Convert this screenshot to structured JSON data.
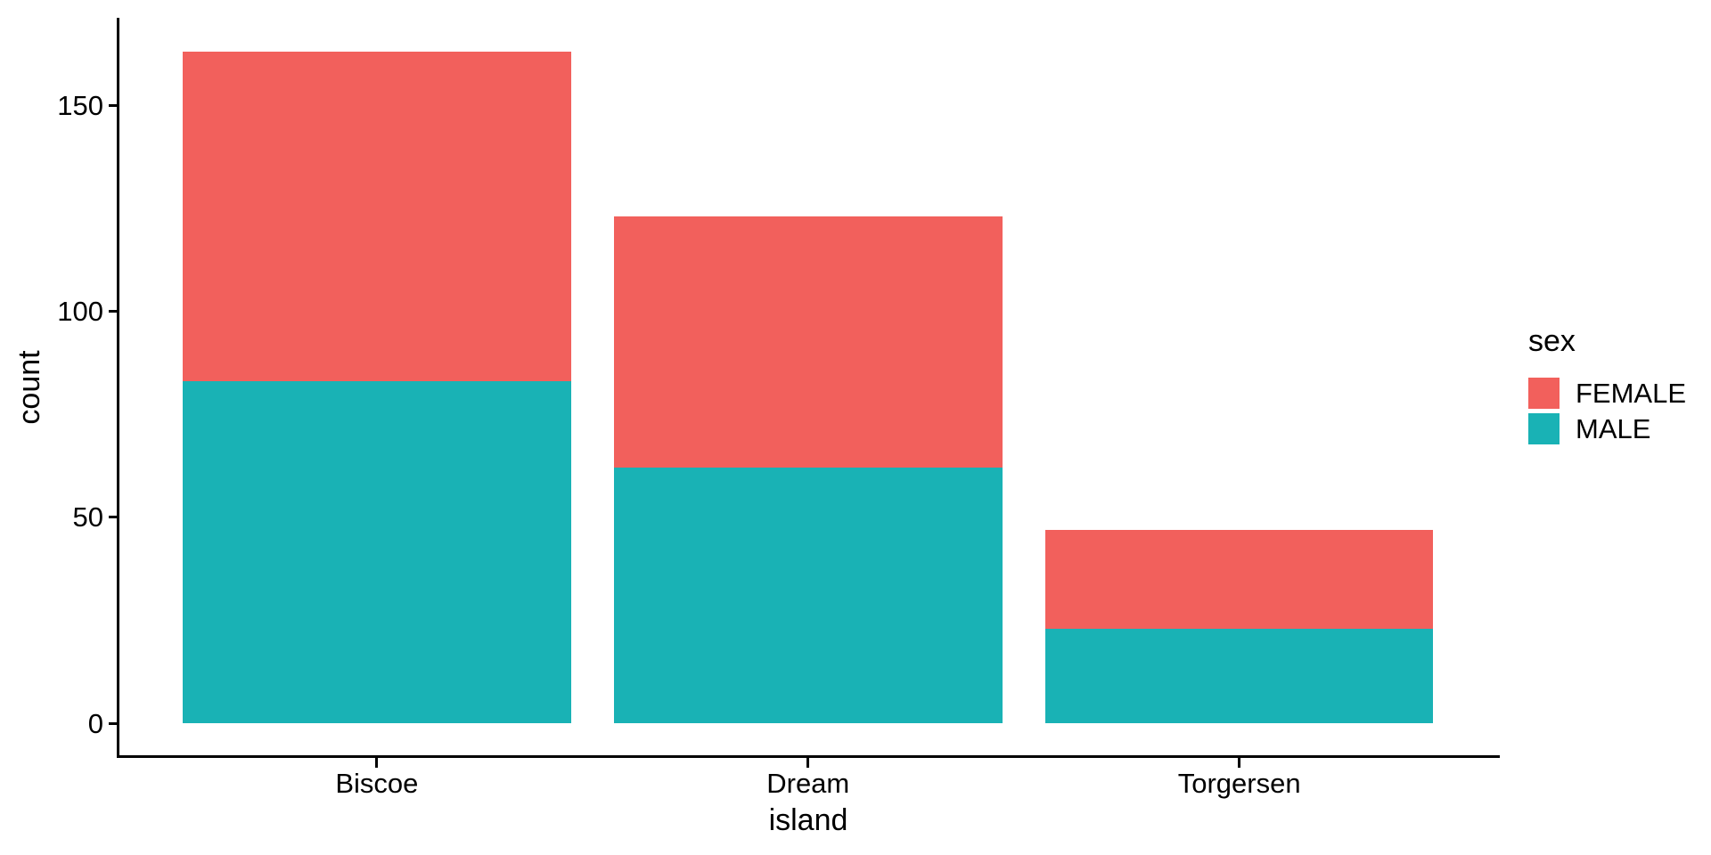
{
  "figure": {
    "background_color": "#FFFFFF",
    "text_color": "#000000",
    "axis_color": "#000000"
  },
  "chart_data": {
    "type": "bar",
    "stacked": true,
    "orientation": "vertical",
    "title": "",
    "xlabel": "island",
    "ylabel": "count",
    "categories": [
      "Biscoe",
      "Dream",
      "Torgersen"
    ],
    "series": [
      {
        "name": "FEMALE",
        "color": "#F2605C",
        "values": [
          80,
          61,
          24
        ]
      },
      {
        "name": "MALE",
        "color": "#19B2B5",
        "values": [
          83,
          62,
          23
        ]
      }
    ],
    "stack_order_bottom_to_top": [
      "MALE",
      "FEMALE"
    ],
    "totals": [
      163,
      123,
      47
    ],
    "yticks": [
      0,
      50,
      100,
      150
    ],
    "ytick_labels": [
      "0",
      "50",
      "100",
      "150"
    ],
    "ylim": [
      0,
      171
    ],
    "grid": false,
    "legend": {
      "title": "sex",
      "position": "right",
      "entries": [
        "FEMALE",
        "MALE"
      ]
    }
  }
}
